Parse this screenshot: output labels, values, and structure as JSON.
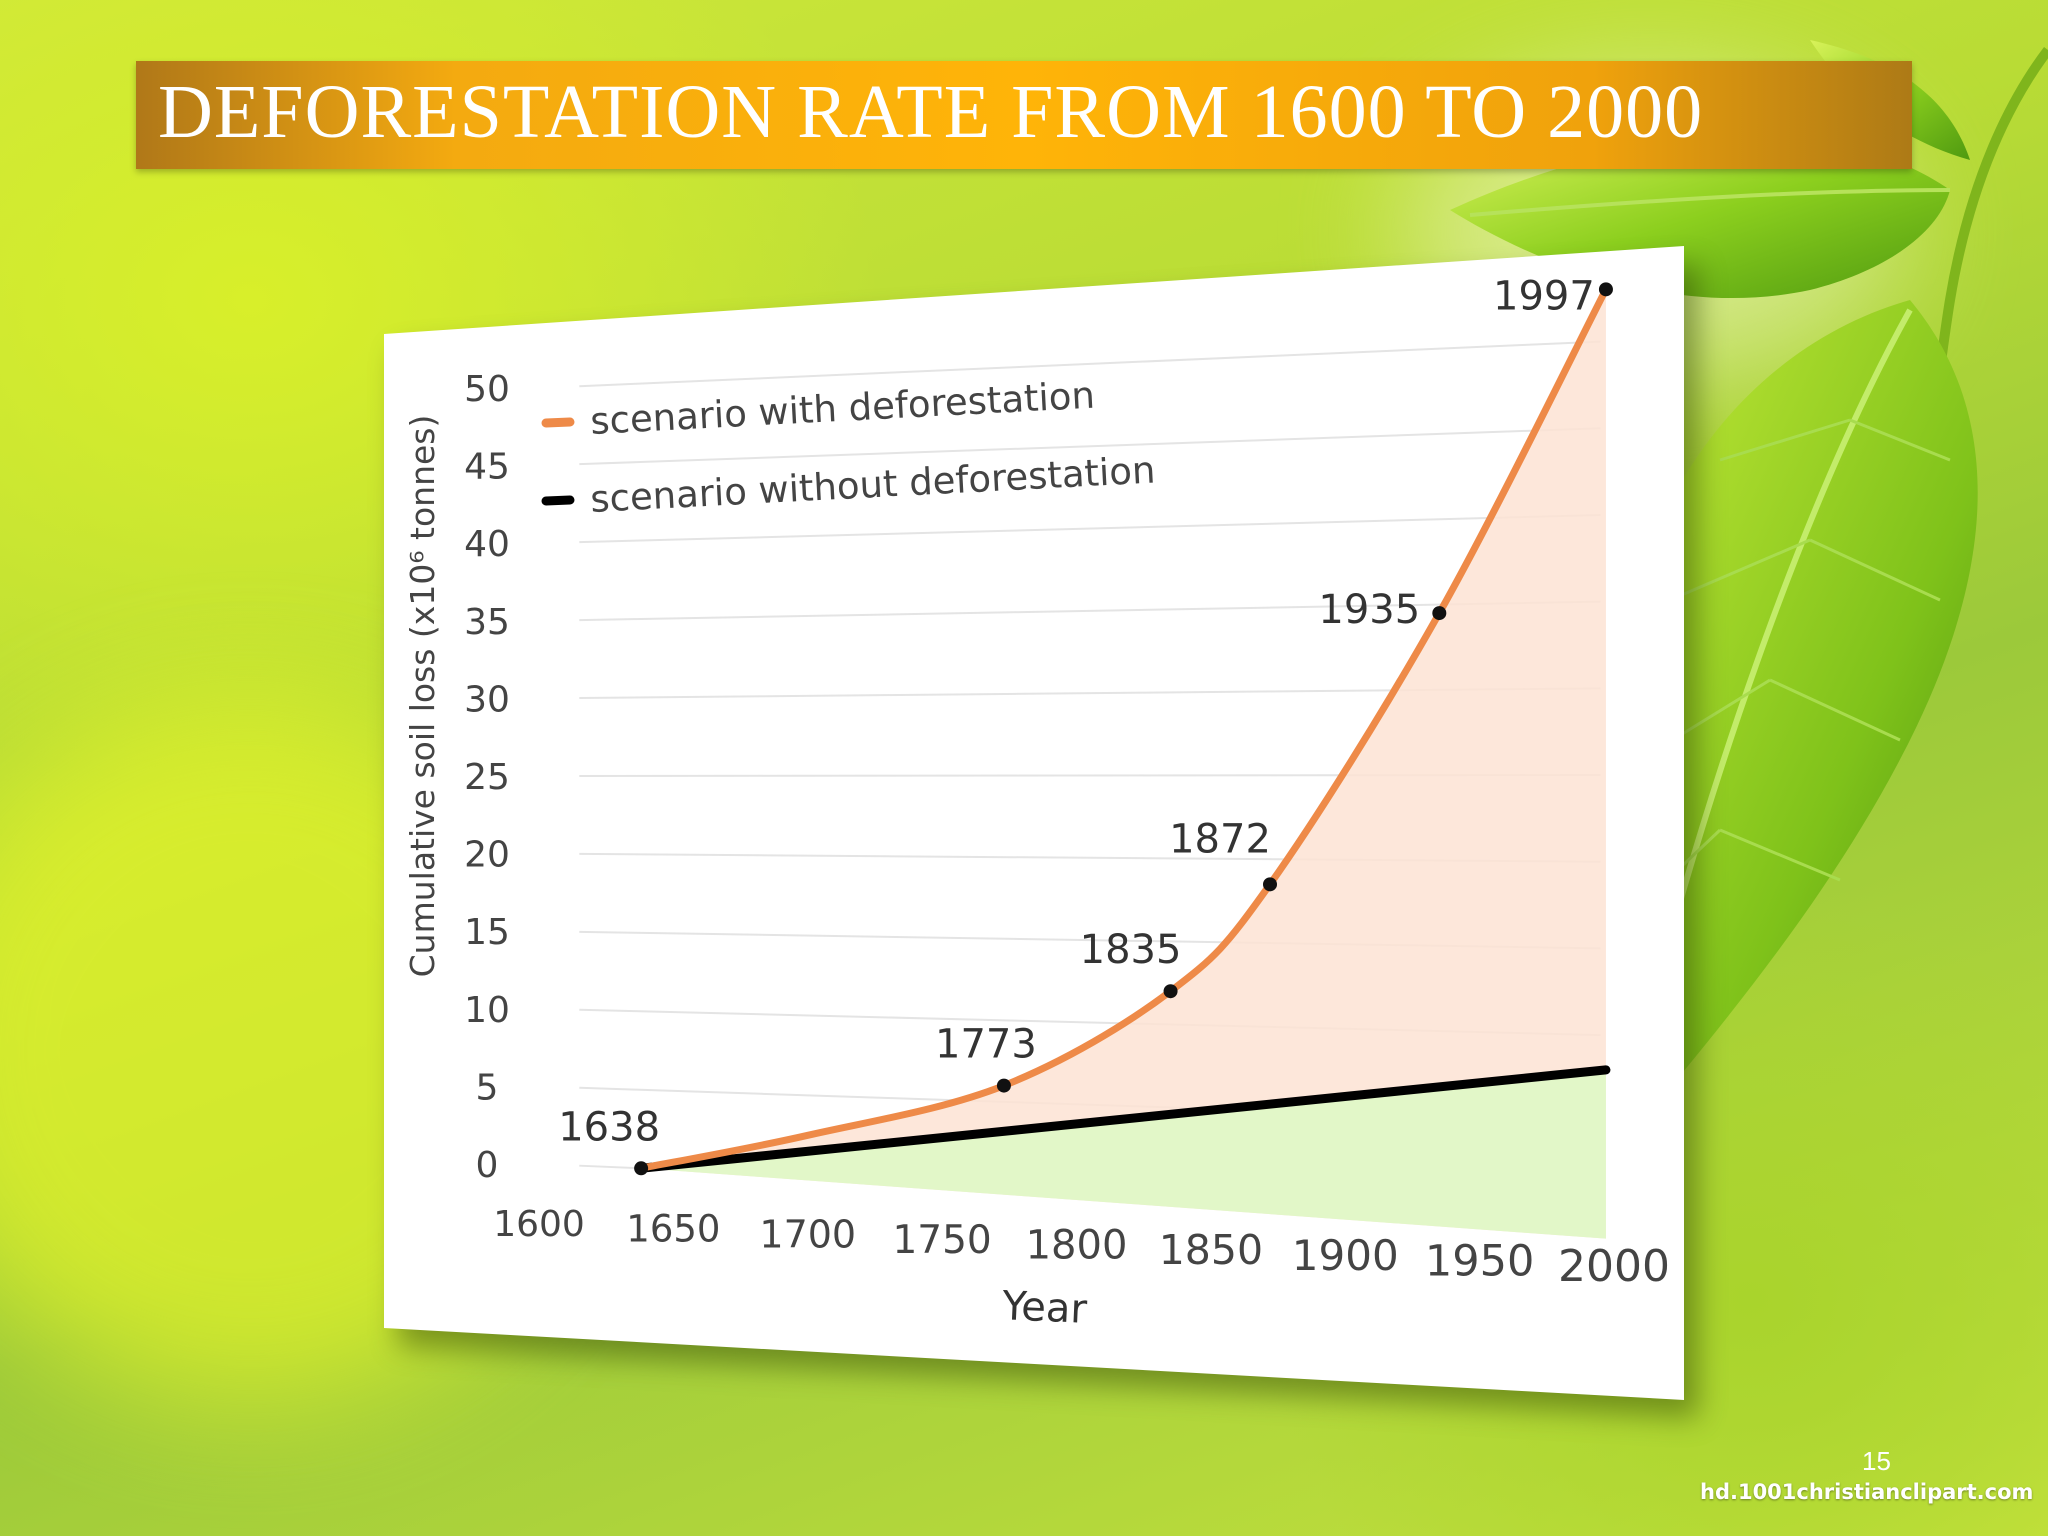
{
  "slide": {
    "title": "DEFORESTATION RATE FROM 1600 TO 2000",
    "page_number": "15",
    "credit": "hd.1001christianclipart.com"
  },
  "colors": {
    "title_banner": "#ffb408",
    "with_deforestation": "#ee8a48",
    "with_deforestation_fill": "#fde3d4",
    "without_deforestation": "#000000",
    "without_deforestation_fill": "#e2f7c8"
  },
  "chart_data": {
    "type": "line",
    "xlabel": "Year",
    "ylabel": "Cumulative soil loss (x10⁶ tonnes)",
    "xlim": [
      1600,
      2000
    ],
    "ylim": [
      0,
      50
    ],
    "x_ticks": [
      "1600",
      "1650",
      "1700",
      "1750",
      "1800",
      "1850",
      "1900",
      "1950",
      "2000"
    ],
    "y_ticks": [
      "0",
      "5",
      "10",
      "15",
      "20",
      "25",
      "30",
      "35",
      "40",
      "45",
      "50"
    ],
    "grid": true,
    "legend_position": "top-left",
    "area_fill": true,
    "series": [
      {
        "name": "scenario with deforestation",
        "color": "#ee8a48",
        "points": [
          {
            "x": 1638,
            "y": 0,
            "label": "1638"
          },
          {
            "x": 1700,
            "y": 2.5
          },
          {
            "x": 1773,
            "y": 6,
            "label": "1773"
          },
          {
            "x": 1835,
            "y": 12,
            "label": "1835"
          },
          {
            "x": 1872,
            "y": 18.5,
            "label": "1872"
          },
          {
            "x": 1935,
            "y": 34.5,
            "label": "1935"
          },
          {
            "x": 1997,
            "y": 53,
            "label": "1997"
          }
        ]
      },
      {
        "name": "scenario without deforestation",
        "color": "#000000",
        "points": [
          {
            "x": 1638,
            "y": 0
          },
          {
            "x": 1997,
            "y": 8
          }
        ]
      }
    ]
  }
}
